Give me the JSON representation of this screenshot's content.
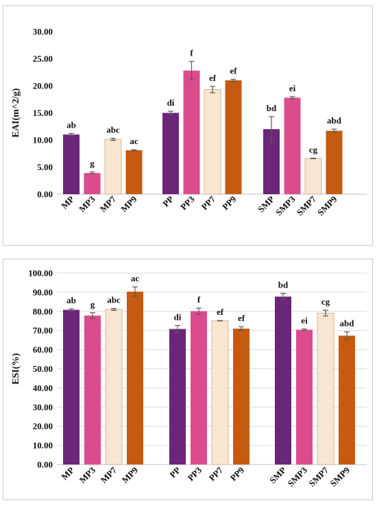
{
  "colors": {
    "purple": "#6b2579",
    "pink": "#dc4c8d",
    "cream": "#f9e6d0",
    "orange": "#c55a11",
    "grid": "#d9d9d9",
    "axis": "#bfbfbf",
    "error": "#595959"
  },
  "chart_data": [
    {
      "type": "bar",
      "title": "",
      "xlabel": "",
      "ylabel": "EAI(m^2/g)",
      "ylim": [
        0,
        30
      ],
      "yticks": [
        "0.00",
        "5.00",
        "10.00",
        "15.00",
        "20.00",
        "25.00",
        "30.00"
      ],
      "grid": false,
      "groups": [
        {
          "categories": [
            "MP",
            "MP3",
            "MP7",
            "MP9"
          ],
          "values": [
            11.0,
            3.9,
            10.1,
            8.1
          ],
          "errors": [
            0.2,
            0.2,
            0.2,
            0.1
          ],
          "letters": [
            "ab",
            "g",
            "abc",
            "ac"
          ]
        },
        {
          "categories": [
            "PP",
            "PP3",
            "PP7",
            "PP9"
          ],
          "values": [
            15.0,
            22.8,
            19.3,
            21.0
          ],
          "errors": [
            0.3,
            1.7,
            0.6,
            0.2
          ],
          "letters": [
            "di",
            "f",
            "ef",
            "ef"
          ]
        },
        {
          "categories": [
            "SMP",
            "SMP3",
            "SMP7",
            "SMP9"
          ],
          "values": [
            12.0,
            17.8,
            6.6,
            11.7
          ],
          "errors": [
            2.3,
            0.2,
            0.05,
            0.3
          ],
          "letters": [
            "bd",
            "ei",
            "cg",
            "abd"
          ]
        }
      ]
    },
    {
      "type": "bar",
      "title": "",
      "xlabel": "",
      "ylabel": "ESI(%)",
      "ylim": [
        0,
        100
      ],
      "yticks": [
        "0.00",
        "10.00",
        "20.00",
        "30.00",
        "40.00",
        "50.00",
        "60.00",
        "70.00",
        "80.00",
        "90.00",
        "100.00"
      ],
      "grid": true,
      "groups": [
        {
          "categories": [
            "MP",
            "MP3",
            "MP7",
            "MP9"
          ],
          "values": [
            80.8,
            77.8,
            81.0,
            90.3
          ],
          "errors": [
            0.5,
            1.5,
            0.5,
            2.5
          ],
          "letters": [
            "ab",
            "g",
            "abc",
            "ac"
          ]
        },
        {
          "categories": [
            "PP",
            "PP3",
            "PP7",
            "PP9"
          ],
          "values": [
            70.8,
            80.1,
            75.1,
            71.0
          ],
          "errors": [
            1.8,
            1.6,
            0.1,
            1.0
          ],
          "letters": [
            "di",
            "f",
            "ef",
            "ef"
          ]
        },
        {
          "categories": [
            "SMP",
            "SMP3",
            "SMP7",
            "SMP9"
          ],
          "values": [
            87.7,
            70.4,
            79.1,
            67.3
          ],
          "errors": [
            1.7,
            0.4,
            1.5,
            2.0
          ],
          "letters": [
            "bd",
            "ei",
            "cg",
            "abd"
          ]
        }
      ]
    }
  ]
}
